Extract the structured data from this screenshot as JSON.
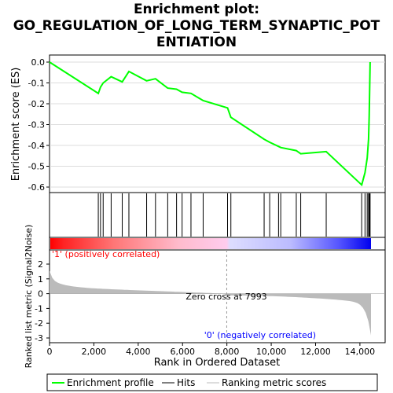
{
  "chart_data": {
    "title_lines": [
      "Enrichment plot:",
      "GO_REGULATION_OF_LONG_TERM_SYNAPTIC_POT",
      "ENTIATION"
    ],
    "type": "line",
    "xlabel": "Rank in Ordered Dataset",
    "es_ylabel": "Enrichment score (ES)",
    "metric_ylabel": "Ranked list metric (Signal2Noise)",
    "xlim": [
      0,
      14500
    ],
    "x_ticks": [
      0,
      2000,
      4000,
      6000,
      8000,
      10000,
      12000,
      14000
    ],
    "x_tick_labels": [
      "0",
      "2,000",
      "4,000",
      "6,000",
      "8,000",
      "10,000",
      "12,000",
      "14,000"
    ],
    "es_ylim": [
      -0.6,
      0.0
    ],
    "es_ticks": [
      0.0,
      -0.1,
      -0.2,
      -0.3,
      -0.4,
      -0.5,
      -0.6
    ],
    "es_tick_labels": [
      "0.0",
      "-0.1",
      "-0.2",
      "-0.3",
      "-0.4",
      "-0.5",
      "-0.6"
    ],
    "metric_ylim": [
      -3,
      2
    ],
    "metric_ticks": [
      2,
      1,
      0,
      -1,
      -2,
      -3
    ],
    "metric_tick_labels": [
      "2",
      "1",
      "0",
      "-1",
      "-2",
      "-3"
    ],
    "hits": [
      2200,
      2300,
      2420,
      2780,
      3280,
      3580,
      4380,
      4780,
      5330,
      5730,
      5980,
      6380,
      6930,
      8030,
      8180,
      9680,
      9930,
      10330,
      10430,
      11130,
      11330,
      12480,
      14080,
      14230,
      14330,
      14390,
      14420,
      14440,
      14460
    ],
    "es_curve": {
      "x": [
        0,
        2200,
        2300,
        2420,
        2780,
        3280,
        3580,
        4380,
        4780,
        5330,
        5730,
        5980,
        6380,
        6930,
        8030,
        8180,
        9680,
        9930,
        10330,
        10430,
        11130,
        11330,
        12480,
        14080,
        14230,
        14330,
        14390,
        14420,
        14440,
        14460
      ],
      "y": [
        0.0,
        -0.15,
        -0.12,
        -0.1,
        -0.07,
        -0.095,
        -0.045,
        -0.09,
        -0.08,
        -0.125,
        -0.13,
        -0.145,
        -0.15,
        -0.185,
        -0.22,
        -0.265,
        -0.37,
        -0.385,
        -0.405,
        -0.41,
        -0.425,
        -0.44,
        -0.43,
        -0.59,
        -0.53,
        -0.46,
        -0.37,
        -0.26,
        -0.13,
        0.0
      ]
    },
    "zero_cross_label": "Zero cross at 7993",
    "zero_cross": 7993,
    "pos_label": "'1' (positively correlated)",
    "neg_label": "'0' (negatively correlated)",
    "legend": [
      "Enrichment profile",
      "Hits",
      "Ranking metric scores"
    ],
    "colors": {
      "es": "#00ff00",
      "hit": "#000000",
      "metric": "#bbbbbb",
      "pos": "#ff0000",
      "neg": "#0000ff"
    }
  }
}
